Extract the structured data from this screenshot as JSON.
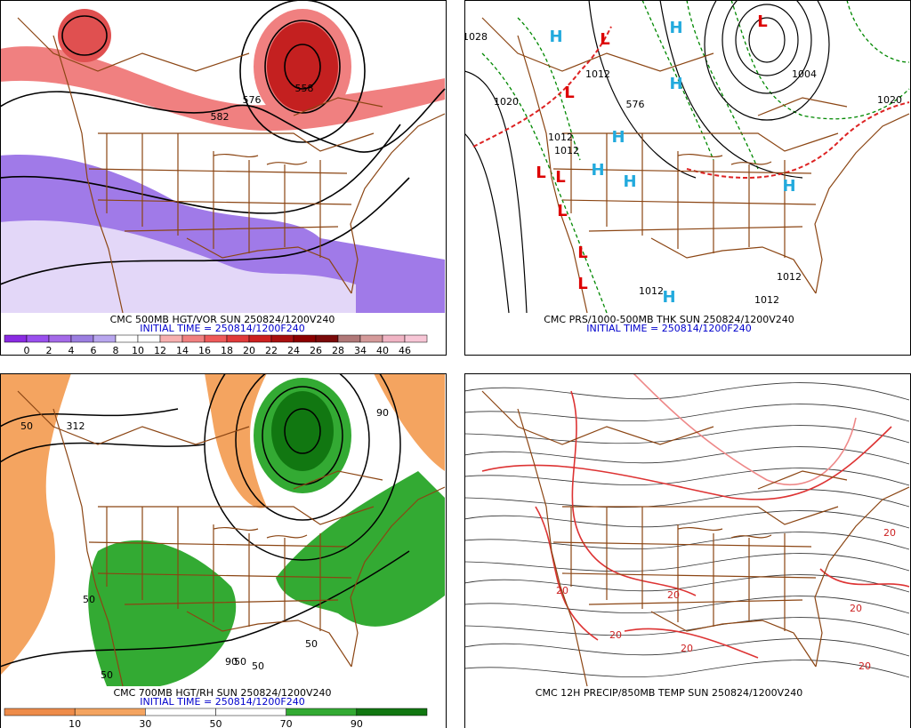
{
  "panels": [
    {
      "title": "CMC 500MB HGT/VOR SUN 250824/1200V240",
      "initial_time": "INITIAL TIME = 250814/1200F240",
      "colorbar": {
        "labels": [
          0,
          2,
          4,
          6,
          8,
          10,
          12,
          14,
          16,
          18,
          20,
          22,
          24,
          26,
          28,
          34,
          40,
          46
        ],
        "colors": [
          "#8a2be2",
          "#9a50ee",
          "#a46ae8",
          "#9b7ee0",
          "#b8a6ee",
          "#ffffff",
          "#ffffff",
          "#f7b0b0",
          "#f08080",
          "#ee5a5a",
          "#e03a3a",
          "#cc2020",
          "#a81010",
          "#8b0000",
          "#7a0a0a",
          "#b07878",
          "#d49a9a",
          "#f0b4c4",
          "#f7c6d6"
        ]
      },
      "contour_labels": [
        "582",
        "576",
        "558"
      ]
    },
    {
      "title": "CMC PRS/1000-500MB THK SUN 250824/1200V240",
      "initial_time": "INITIAL TIME = 250814/1200F240",
      "highs": [
        "H",
        "H",
        "H",
        "H",
        "H",
        "H",
        "H",
        "H"
      ],
      "lows": [
        "L",
        "L",
        "L",
        "L",
        "L",
        "L",
        "L",
        "L"
      ],
      "contour_labels": [
        "1028",
        "1020",
        "1012",
        "576",
        "1004",
        "1020",
        "1012",
        "1012",
        "1012",
        "1012",
        "1012"
      ]
    },
    {
      "title": "CMC 700MB HGT/RH SUN 250824/1200V240",
      "initial_time": "INITIAL TIME = 250814/1200F240",
      "colorbar": {
        "labels": [
          10,
          30,
          50,
          70,
          90
        ],
        "colors": [
          "#ee8c4a",
          "#f4a460",
          "#ffffff",
          "#ffffff",
          "#33aa33",
          "#117711"
        ]
      },
      "contour_labels": [
        "50",
        "50",
        "50",
        "50",
        "50",
        "90",
        "90",
        "312",
        "50"
      ]
    },
    {
      "title": "CMC 12H PRECIP/850MB TEMP SUN 250824/1200V240",
      "contour_labels": [
        "20",
        "20",
        "20",
        "20",
        "20",
        "20",
        "20"
      ]
    }
  ]
}
